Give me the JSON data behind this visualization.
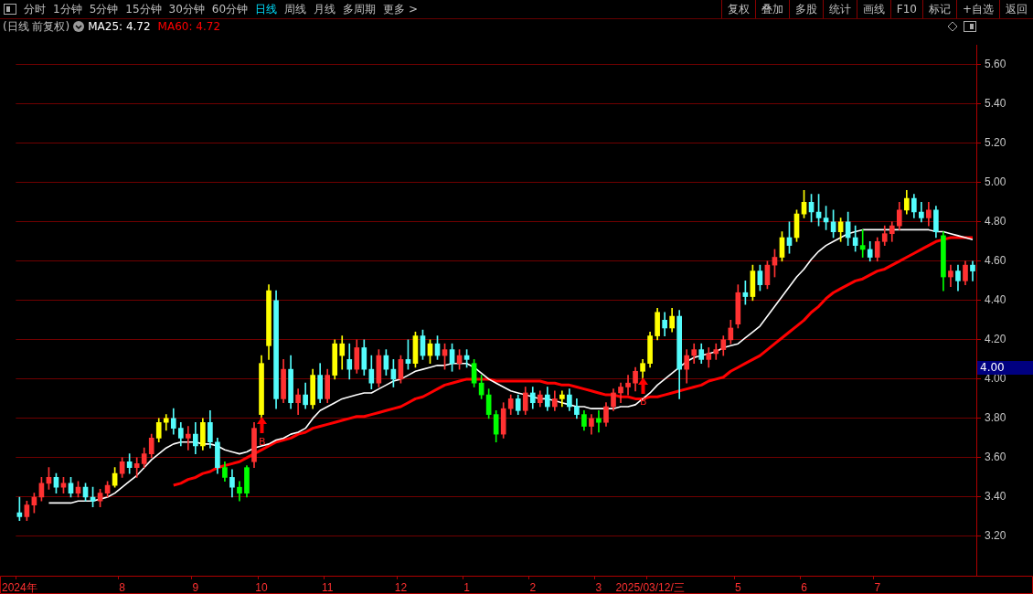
{
  "chart_data": {
    "type": "candlestick",
    "title": "(日线 前复权)",
    "categories": [
      "2024年",
      null,
      null,
      null,
      null,
      null,
      null,
      null,
      null,
      null,
      null,
      null,
      null,
      null,
      "8",
      null,
      null,
      null,
      null,
      null,
      null,
      null,
      null,
      null,
      "9",
      null,
      null,
      null,
      null,
      null,
      null,
      null,
      null,
      "10",
      null,
      null,
      null,
      null,
      null,
      null,
      null,
      null,
      "11",
      null,
      null,
      null,
      null,
      null,
      null,
      null,
      null,
      null,
      "12",
      null,
      null,
      null,
      null,
      null,
      null,
      null,
      null,
      "1",
      null,
      null,
      null,
      null,
      null,
      null,
      null,
      null,
      "2",
      null,
      null,
      null,
      null,
      null,
      null,
      null,
      null,
      "3",
      null,
      null,
      null,
      null,
      null,
      null,
      "2025/03/12/三",
      null,
      null,
      null,
      null,
      null,
      null,
      null,
      null,
      null,
      null,
      null,
      "5",
      null,
      null,
      null,
      null,
      null,
      null,
      null,
      null,
      "6",
      null,
      null,
      null,
      null,
      null,
      null,
      null,
      null,
      null,
      "7",
      null,
      null,
      null,
      null,
      null,
      null,
      null,
      null,
      null,
      null,
      null,
      null,
      null
    ],
    "ohlc": [
      [
        3.32,
        3.4,
        3.28,
        3.3
      ],
      [
        3.3,
        3.38,
        3.28,
        3.36
      ],
      [
        3.36,
        3.42,
        3.32,
        3.4
      ],
      [
        3.4,
        3.5,
        3.38,
        3.47
      ],
      [
        3.47,
        3.55,
        3.44,
        3.5
      ],
      [
        3.5,
        3.52,
        3.42,
        3.45
      ],
      [
        3.45,
        3.5,
        3.42,
        3.47
      ],
      [
        3.47,
        3.5,
        3.4,
        3.42
      ],
      [
        3.42,
        3.48,
        3.4,
        3.45
      ],
      [
        3.45,
        3.47,
        3.38,
        3.4
      ],
      [
        3.4,
        3.45,
        3.35,
        3.38
      ],
      [
        3.38,
        3.44,
        3.35,
        3.42
      ],
      [
        3.42,
        3.48,
        3.4,
        3.46
      ],
      [
        3.46,
        3.55,
        3.45,
        3.52
      ],
      [
        3.52,
        3.6,
        3.5,
        3.58
      ],
      [
        3.58,
        3.62,
        3.52,
        3.55
      ],
      [
        3.55,
        3.6,
        3.5,
        3.57
      ],
      [
        3.57,
        3.65,
        3.55,
        3.62
      ],
      [
        3.62,
        3.72,
        3.6,
        3.7
      ],
      [
        3.7,
        3.8,
        3.68,
        3.78
      ],
      [
        3.78,
        3.82,
        3.74,
        3.8
      ],
      [
        3.8,
        3.85,
        3.72,
        3.75
      ],
      [
        3.75,
        3.78,
        3.66,
        3.7
      ],
      [
        3.7,
        3.76,
        3.64,
        3.72
      ],
      [
        3.72,
        3.78,
        3.62,
        3.66
      ],
      [
        3.66,
        3.8,
        3.64,
        3.78
      ],
      [
        3.78,
        3.84,
        3.65,
        3.68
      ],
      [
        3.68,
        3.7,
        3.52,
        3.55
      ],
      [
        3.55,
        3.58,
        3.48,
        3.5
      ],
      [
        3.5,
        3.54,
        3.4,
        3.45
      ],
      [
        3.45,
        3.48,
        3.38,
        3.42
      ],
      [
        3.55,
        3.56,
        3.4,
        3.42
      ],
      [
        3.58,
        3.78,
        3.55,
        3.75
      ],
      [
        3.82,
        4.12,
        3.8,
        4.08
      ],
      [
        4.17,
        4.48,
        4.1,
        4.45
      ],
      [
        4.4,
        4.45,
        3.85,
        3.9
      ],
      [
        3.9,
        4.1,
        3.88,
        4.05
      ],
      [
        4.05,
        4.12,
        3.85,
        3.88
      ],
      [
        3.88,
        3.95,
        3.82,
        3.92
      ],
      [
        3.92,
        3.98,
        3.85,
        3.87
      ],
      [
        3.87,
        4.05,
        3.85,
        4.02
      ],
      [
        4.02,
        4.08,
        3.88,
        3.9
      ],
      [
        3.9,
        4.05,
        3.88,
        4.02
      ],
      [
        4.02,
        4.2,
        4.0,
        4.18
      ],
      [
        4.12,
        4.22,
        4.05,
        4.18
      ],
      [
        4.1,
        4.18,
        4.0,
        4.05
      ],
      [
        4.05,
        4.2,
        4.03,
        4.16
      ],
      [
        4.16,
        4.2,
        4.02,
        4.05
      ],
      [
        4.05,
        4.12,
        3.95,
        3.98
      ],
      [
        3.98,
        4.15,
        3.96,
        4.12
      ],
      [
        4.12,
        4.15,
        4.02,
        4.05
      ],
      [
        4.05,
        4.1,
        3.96,
        4.0
      ],
      [
        4.0,
        4.12,
        3.98,
        4.1
      ],
      [
        4.1,
        4.2,
        4.05,
        4.08
      ],
      [
        4.08,
        4.24,
        4.06,
        4.22
      ],
      [
        4.22,
        4.25,
        4.1,
        4.12
      ],
      [
        4.12,
        4.2,
        4.08,
        4.18
      ],
      [
        4.18,
        4.22,
        4.1,
        4.12
      ],
      [
        4.12,
        4.18,
        4.05,
        4.15
      ],
      [
        4.15,
        4.18,
        4.04,
        4.08
      ],
      [
        4.08,
        4.15,
        4.05,
        4.12
      ],
      [
        4.12,
        4.15,
        4.06,
        4.1
      ],
      [
        4.08,
        4.1,
        3.96,
        3.98
      ],
      [
        3.98,
        4.02,
        3.9,
        3.92
      ],
      [
        3.92,
        3.95,
        3.8,
        3.82
      ],
      [
        3.82,
        3.84,
        3.68,
        3.72
      ],
      [
        3.72,
        3.88,
        3.7,
        3.85
      ],
      [
        3.85,
        3.92,
        3.82,
        3.9
      ],
      [
        3.9,
        3.92,
        3.82,
        3.84
      ],
      [
        3.84,
        3.96,
        3.82,
        3.93
      ],
      [
        3.93,
        3.96,
        3.85,
        3.88
      ],
      [
        3.88,
        3.94,
        3.86,
        3.92
      ],
      [
        3.92,
        3.96,
        3.84,
        3.86
      ],
      [
        3.86,
        3.94,
        3.84,
        3.9
      ],
      [
        3.9,
        3.94,
        3.86,
        3.92
      ],
      [
        3.92,
        3.95,
        3.84,
        3.86
      ],
      [
        3.86,
        3.9,
        3.8,
        3.82
      ],
      [
        3.82,
        3.84,
        3.74,
        3.76
      ],
      [
        3.76,
        3.82,
        3.72,
        3.8
      ],
      [
        3.8,
        3.84,
        3.73,
        3.78
      ],
      [
        3.78,
        3.88,
        3.76,
        3.86
      ],
      [
        3.86,
        3.95,
        3.84,
        3.93
      ],
      [
        3.93,
        3.98,
        3.88,
        3.96
      ],
      [
        3.96,
        4.02,
        3.92,
        3.98
      ],
      [
        3.98,
        4.06,
        3.94,
        4.04
      ],
      [
        4.04,
        4.1,
        4.0,
        4.08
      ],
      [
        4.08,
        4.24,
        4.06,
        4.22
      ],
      [
        4.22,
        4.36,
        4.2,
        4.34
      ],
      [
        4.3,
        4.34,
        4.22,
        4.26
      ],
      [
        4.26,
        4.36,
        4.24,
        4.32
      ],
      [
        4.32,
        4.35,
        3.9,
        4.05
      ],
      [
        4.05,
        4.15,
        3.98,
        4.12
      ],
      [
        4.12,
        4.18,
        4.08,
        4.15
      ],
      [
        4.15,
        4.18,
        4.08,
        4.1
      ],
      [
        4.1,
        4.16,
        4.06,
        4.13
      ],
      [
        4.13,
        4.18,
        4.1,
        4.15
      ],
      [
        4.15,
        4.22,
        4.12,
        4.2
      ],
      [
        4.2,
        4.3,
        4.18,
        4.26
      ],
      [
        4.28,
        4.48,
        4.26,
        4.44
      ],
      [
        4.44,
        4.5,
        4.38,
        4.42
      ],
      [
        4.42,
        4.58,
        4.4,
        4.55
      ],
      [
        4.55,
        4.58,
        4.45,
        4.48
      ],
      [
        4.48,
        4.6,
        4.46,
        4.58
      ],
      [
        4.58,
        4.66,
        4.52,
        4.62
      ],
      [
        4.62,
        4.75,
        4.6,
        4.72
      ],
      [
        4.72,
        4.8,
        4.64,
        4.68
      ],
      [
        4.72,
        4.86,
        4.7,
        4.84
      ],
      [
        4.84,
        4.96,
        4.82,
        4.9
      ],
      [
        4.9,
        4.94,
        4.8,
        4.85
      ],
      [
        4.85,
        4.94,
        4.78,
        4.82
      ],
      [
        4.82,
        4.88,
        4.76,
        4.8
      ],
      [
        4.8,
        4.86,
        4.72,
        4.75
      ],
      [
        4.75,
        4.82,
        4.7,
        4.8
      ],
      [
        4.8,
        4.85,
        4.68,
        4.72
      ],
      [
        4.72,
        4.78,
        4.65,
        4.68
      ],
      [
        4.68,
        4.76,
        4.62,
        4.66
      ],
      [
        4.66,
        4.7,
        4.6,
        4.62
      ],
      [
        4.62,
        4.72,
        4.6,
        4.7
      ],
      [
        4.7,
        4.78,
        4.68,
        4.74
      ],
      [
        4.74,
        4.8,
        4.7,
        4.78
      ],
      [
        4.78,
        4.9,
        4.76,
        4.86
      ],
      [
        4.86,
        4.96,
        4.84,
        4.92
      ],
      [
        4.92,
        4.94,
        4.82,
        4.85
      ],
      [
        4.85,
        4.9,
        4.8,
        4.82
      ],
      [
        4.82,
        4.9,
        4.78,
        4.86
      ],
      [
        4.86,
        4.88,
        4.72,
        4.75
      ],
      [
        4.73,
        4.75,
        4.45,
        4.52
      ],
      [
        4.52,
        4.58,
        4.47,
        4.55
      ],
      [
        4.55,
        4.58,
        4.45,
        4.5
      ],
      [
        4.5,
        4.6,
        4.48,
        4.58
      ],
      [
        4.58,
        4.6,
        4.5,
        4.55
      ]
    ],
    "colors": [
      "#54fcfc",
      "#ff3232",
      "#ff3232",
      "#ff3232",
      "#ff3232",
      "#54fcfc",
      "#ff3232",
      "#54fcfc",
      "#ff3232",
      "#54fcfc",
      "#54fcfc",
      "#ff3232",
      "#ff3232",
      "#ffff00",
      "#ff3232",
      "#54fcfc",
      "#ff3232",
      "#ff3232",
      "#ff3232",
      "#ffff00",
      "#ffff00",
      "#54fcfc",
      "#54fcfc",
      "#ff3232",
      "#54fcfc",
      "#ffff00",
      "#54fcfc",
      "#54fcfc",
      "#00ff00",
      "#54fcfc",
      "#00ff00",
      "#00ff00",
      "#ff3232",
      "#ffff00",
      "#ffff00",
      "#54fcfc",
      "#ff3232",
      "#54fcfc",
      "#ff3232",
      "#54fcfc",
      "#ffff00",
      "#54fcfc",
      "#ff3232",
      "#ffff00",
      "#ffff00",
      "#54fcfc",
      "#ff3232",
      "#54fcfc",
      "#54fcfc",
      "#ff3232",
      "#54fcfc",
      "#54fcfc",
      "#ff3232",
      "#54fcfc",
      "#ffff00",
      "#54fcfc",
      "#ffff00",
      "#54fcfc",
      "#ff3232",
      "#54fcfc",
      "#ff3232",
      "#54fcfc",
      "#00ff00",
      "#00ff00",
      "#00ff00",
      "#00ff00",
      "#ff3232",
      "#ff3232",
      "#54fcfc",
      "#ff3232",
      "#54fcfc",
      "#ff3232",
      "#54fcfc",
      "#ff3232",
      "#ffff00",
      "#54fcfc",
      "#54fcfc",
      "#00ff00",
      "#ff3232",
      "#00ff00",
      "#ff3232",
      "#ff3232",
      "#ff3232",
      "#ff3232",
      "#ff3232",
      "#ffff00",
      "#ffff00",
      "#ffff00",
      "#54fcfc",
      "#ffff00",
      "#54fcfc",
      "#ff3232",
      "#ff3232",
      "#54fcfc",
      "#ff3232",
      "#ff3232",
      "#ff3232",
      "#ff3232",
      "#ff3232",
      "#54fcfc",
      "#ffff00",
      "#54fcfc",
      "#ff3232",
      "#ff3232",
      "#ffff00",
      "#54fcfc",
      "#ffff00",
      "#ffff00",
      "#54fcfc",
      "#54fcfc",
      "#54fcfc",
      "#54fcfc",
      "#ffff00",
      "#54fcfc",
      "#54fcfc",
      "#00ff00",
      "#54fcfc",
      "#ff3232",
      "#ff3232",
      "#ff3232",
      "#ff3232",
      "#ffff00",
      "#54fcfc",
      "#54fcfc",
      "#ff3232",
      "#54fcfc",
      "#00ff00",
      "#ff3232",
      "#54fcfc",
      "#ff3232",
      "#54fcfc"
    ],
    "series": [
      {
        "name": "MA25: 4.72",
        "type": "line",
        "color": "#ffffff",
        "values": [
          null,
          null,
          null,
          null,
          3.37,
          3.37,
          3.37,
          3.37,
          3.38,
          3.38,
          3.38,
          3.39,
          3.4,
          3.42,
          3.45,
          3.48,
          3.51,
          3.55,
          3.59,
          3.62,
          3.65,
          3.67,
          3.68,
          3.68,
          3.68,
          3.67,
          3.67,
          3.66,
          3.64,
          3.63,
          3.62,
          3.63,
          3.65,
          3.66,
          3.67,
          3.69,
          3.7,
          3.72,
          3.73,
          3.75,
          3.8,
          3.84,
          3.86,
          3.88,
          3.9,
          3.91,
          3.92,
          3.93,
          3.93,
          3.95,
          3.97,
          3.99,
          4.0,
          4.02,
          4.04,
          4.05,
          4.06,
          4.07,
          4.07,
          4.08,
          4.08,
          4.08,
          4.06,
          4.03,
          4.0,
          3.98,
          3.96,
          3.94,
          3.93,
          3.92,
          3.91,
          3.9,
          3.9,
          3.89,
          3.88,
          3.87,
          3.86,
          3.86,
          3.85,
          3.85,
          3.85,
          3.85,
          3.86,
          3.86,
          3.87,
          3.9,
          3.93,
          3.97,
          4.0,
          4.03,
          4.06,
          4.09,
          4.11,
          4.12,
          4.13,
          4.14,
          4.16,
          4.17,
          4.18,
          4.21,
          4.24,
          4.27,
          4.32,
          4.37,
          4.42,
          4.47,
          4.52,
          4.56,
          4.61,
          4.65,
          4.68,
          4.7,
          4.72,
          4.74,
          4.75,
          4.76,
          4.76,
          4.76,
          4.76,
          4.76,
          4.76,
          4.76,
          4.76,
          4.76,
          4.76,
          4.75,
          4.75,
          4.74,
          4.73,
          4.72,
          4.71
        ]
      },
      {
        "name": "MA60: 4.72",
        "type": "line",
        "color": "#ff0000",
        "values": [
          null,
          null,
          null,
          null,
          null,
          null,
          null,
          null,
          null,
          null,
          null,
          null,
          null,
          null,
          null,
          null,
          null,
          null,
          null,
          null,
          null,
          3.46,
          3.47,
          3.49,
          3.5,
          3.52,
          3.53,
          3.55,
          3.56,
          3.57,
          3.58,
          3.6,
          3.62,
          3.64,
          3.66,
          3.68,
          3.69,
          3.7,
          3.72,
          3.73,
          3.75,
          3.76,
          3.77,
          3.78,
          3.79,
          3.8,
          3.81,
          3.81,
          3.82,
          3.83,
          3.84,
          3.85,
          3.86,
          3.88,
          3.9,
          3.91,
          3.93,
          3.95,
          3.97,
          3.98,
          3.99,
          4.0,
          4.0,
          4.0,
          4.0,
          3.99,
          3.99,
          3.99,
          3.99,
          3.99,
          3.99,
          3.99,
          3.98,
          3.98,
          3.97,
          3.97,
          3.96,
          3.95,
          3.94,
          3.93,
          3.92,
          3.92,
          3.91,
          3.91,
          3.9,
          3.9,
          3.91,
          3.91,
          3.92,
          3.93,
          3.94,
          3.95,
          3.96,
          3.97,
          3.99,
          4.0,
          4.01,
          4.04,
          4.06,
          4.08,
          4.1,
          4.12,
          4.15,
          4.18,
          4.21,
          4.24,
          4.27,
          4.3,
          4.34,
          4.37,
          4.41,
          4.44,
          4.46,
          4.48,
          4.5,
          4.51,
          4.53,
          4.55,
          4.56,
          4.58,
          4.6,
          4.62,
          4.64,
          4.66,
          4.68,
          4.7,
          4.71,
          4.72,
          4.72,
          4.72,
          4.72
        ]
      }
    ],
    "ylim": [
      3.0,
      5.7
    ],
    "yticks": [
      {
        "value": 3.2,
        "label": "3.20"
      },
      {
        "value": 3.4,
        "label": "3.40"
      },
      {
        "value": 3.6,
        "label": "3.60"
      },
      {
        "value": 3.8,
        "label": "3.80"
      },
      {
        "value": 4.0,
        "label": "4.00"
      },
      {
        "value": 4.2,
        "label": "4.20"
      },
      {
        "value": 4.4,
        "label": "4.40"
      },
      {
        "value": 4.6,
        "label": "4.60"
      },
      {
        "value": 4.8,
        "label": "4.80"
      },
      {
        "value": 5.0,
        "label": "5.00"
      },
      {
        "value": 5.2,
        "label": "5.20"
      },
      {
        "value": 5.4,
        "label": "5.40"
      },
      {
        "value": 5.6,
        "label": "5.60"
      }
    ],
    "grid": "y",
    "legend": "top left",
    "annotations": [
      "B",
      "B",
      "4.00",
      "分时",
      "1分钟",
      "5分钟",
      "15分钟",
      "30分钟",
      "60分钟",
      "日线",
      "周线",
      "月线",
      "多周期",
      "更多 >",
      "复权",
      "叠加",
      "多股",
      "统计",
      "画线",
      "F10",
      "标记",
      "+自选",
      "返回"
    ]
  }
}
